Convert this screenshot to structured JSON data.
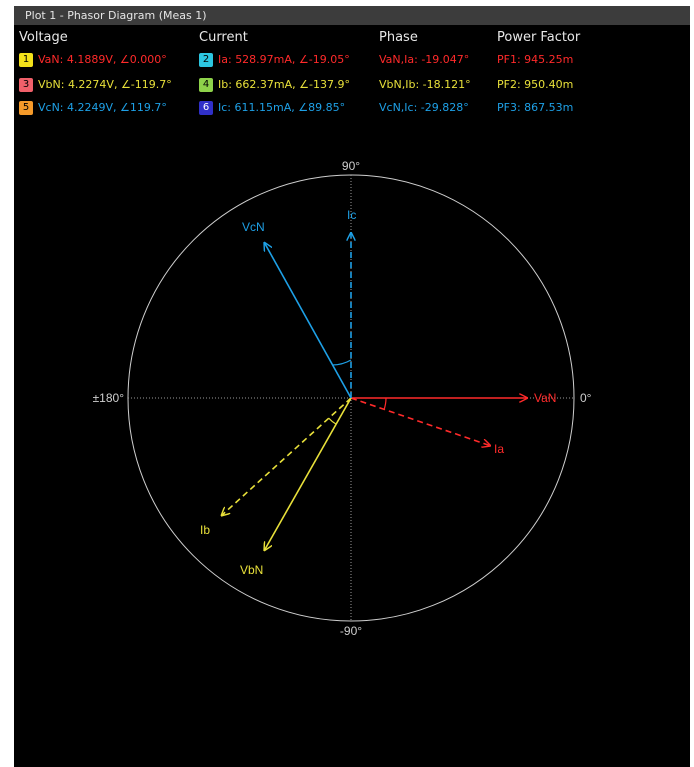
{
  "window": {
    "title": "Plot 1 - Phasor Diagram (Meas 1)"
  },
  "headers": {
    "voltage": "Voltage",
    "current": "Current",
    "phase": "Phase",
    "power_factor": "Power Factor"
  },
  "voltage": [
    {
      "badge": "1",
      "text": "VaN: 4.1889V, ∠0.000°",
      "color": "#ff2a2a",
      "badge_color": "#f2e11a"
    },
    {
      "badge": "3",
      "text": "VbN: 4.2274V, ∠-119.7°",
      "color": "#e8e03a",
      "badge_color": "#f0606a"
    },
    {
      "badge": "5",
      "text": "VcN: 4.2249V, ∠119.7°",
      "color": "#1ea0e6",
      "badge_color": "#f59a2a"
    }
  ],
  "current": [
    {
      "badge": "2",
      "text": "Ia: 528.97mA, ∠-19.05°",
      "color": "#ff2a2a",
      "badge_color": "#2cc6e0"
    },
    {
      "badge": "4",
      "text": "Ib: 662.37mA, ∠-137.9°",
      "color": "#e8e03a",
      "badge_color": "#8ed24a"
    },
    {
      "badge": "6",
      "text": "Ic: 611.15mA, ∠89.85°",
      "color": "#1ea0e6",
      "badge_color": "#3030c8"
    }
  ],
  "phase": [
    {
      "text": "VaN,Ia: -19.047°",
      "color": "#ff2a2a"
    },
    {
      "text": "VbN,Ib: -18.121°",
      "color": "#e8e03a"
    },
    {
      "text": "VcN,Ic: -29.828°",
      "color": "#1ea0e6"
    }
  ],
  "power_factor": [
    {
      "text": "PF1: 945.25m",
      "color": "#ff2a2a"
    },
    {
      "text": "PF2: 950.40m",
      "color": "#e8e03a"
    },
    {
      "text": "PF3: 867.53m",
      "color": "#1ea0e6"
    }
  ],
  "diagram": {
    "axis_labels": {
      "top": "90°",
      "bottom": "-90°",
      "left": "±180°",
      "right": "0°"
    },
    "phasors": [
      {
        "id": "VaN",
        "label": "VaN",
        "angle_deg": 0.0,
        "magnitude": 4.1889,
        "unit": "V",
        "style": "solid",
        "color": "#ff2a2a"
      },
      {
        "id": "Ia",
        "label": "Ia",
        "angle_deg": -19.05,
        "magnitude": 528.97,
        "unit": "mA",
        "style": "dashed",
        "color": "#ff2a2a"
      },
      {
        "id": "VbN",
        "label": "VbN",
        "angle_deg": -119.7,
        "magnitude": 4.2274,
        "unit": "V",
        "style": "solid",
        "color": "#e8e03a"
      },
      {
        "id": "Ib",
        "label": "Ib",
        "angle_deg": -137.9,
        "magnitude": 662.37,
        "unit": "mA",
        "style": "dashed",
        "color": "#e8e03a"
      },
      {
        "id": "VcN",
        "label": "VcN",
        "angle_deg": 119.7,
        "magnitude": 4.2249,
        "unit": "V",
        "style": "solid",
        "color": "#1ea0e6"
      },
      {
        "id": "Ic",
        "label": "Ic",
        "angle_deg": 89.85,
        "magnitude": 611.15,
        "unit": "mA",
        "style": "dashed",
        "color": "#1ea0e6"
      }
    ]
  }
}
